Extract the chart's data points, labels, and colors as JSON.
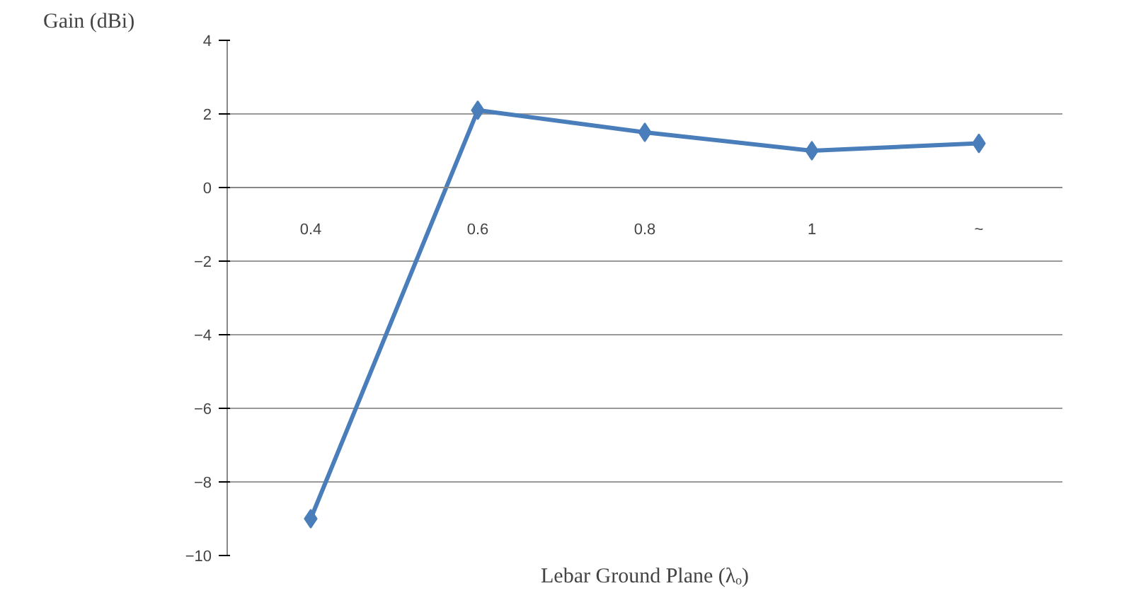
{
  "chart_data": {
    "type": "line",
    "xlabel": "Lebar Ground Plane (λₒ)",
    "ylabel": "Gain (dBi)",
    "categories": [
      "0.4",
      "0.6",
      "0.8",
      "1",
      "~"
    ],
    "series": [
      {
        "color": "#4a7ebb",
        "values": [
          -9.0,
          2.1,
          1.5,
          1.0,
          1.2
        ]
      }
    ],
    "ylim": [
      -10,
      4
    ],
    "yticks": [
      -10,
      -8,
      -6,
      -4,
      -2,
      0,
      2,
      4
    ],
    "grid": "y",
    "marker": "diamond",
    "line_style": "solid"
  }
}
